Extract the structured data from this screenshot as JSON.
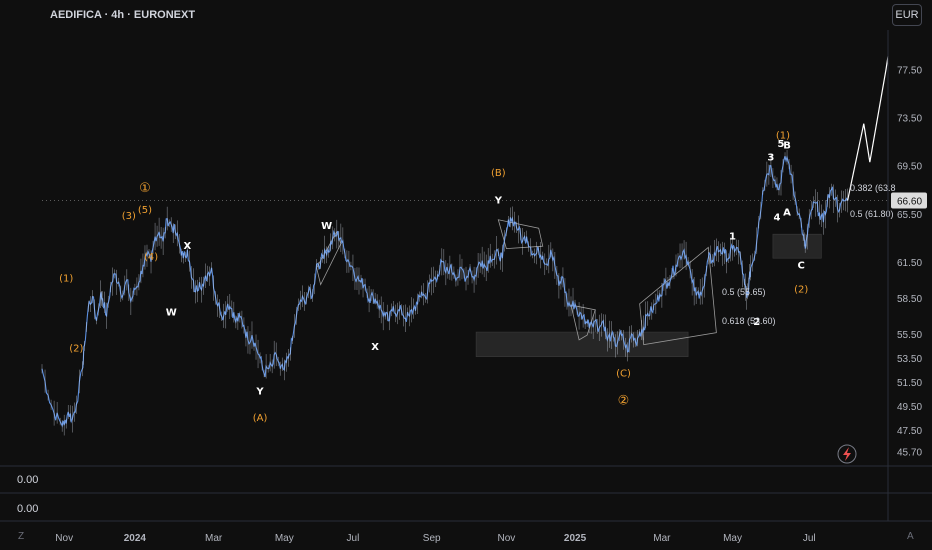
{
  "header": {
    "title": "AEDIFICA · 4h · EURONEXT",
    "currency": "EUR"
  },
  "indicators": {
    "pane1_value": "0.00",
    "pane2_value": "0.00"
  },
  "corners": {
    "left": "Z",
    "right": "A"
  },
  "colors": {
    "background": "#0f0f0f",
    "price_line": "#5b8fe0",
    "wave_orange": "#f0a030",
    "label_white": "#ffffff",
    "zone_fill": "#262626"
  },
  "chart_data": {
    "type": "line",
    "title": "AEDIFICA · 4h · EURONEXT",
    "xlabel": "",
    "ylabel": "",
    "ylim": [
      44.5,
      80.3
    ],
    "x_ticks": [
      "Nov",
      "2024",
      "Mar",
      "May",
      "Jul",
      "Sep",
      "Nov",
      "2025",
      "Mar",
      "May",
      "Jul"
    ],
    "x_tick_bold": [
      "2024",
      "2025"
    ],
    "y_ticks": [
      77.5,
      73.5,
      69.5,
      65.5,
      61.5,
      58.5,
      55.5,
      53.5,
      51.5,
      49.5,
      47.5,
      45.7
    ],
    "current_price": 66.6,
    "grid": false,
    "series": [
      {
        "values": [
          [
            0,
            52.6
          ],
          [
            3,
            50.4
          ],
          [
            6,
            48.9
          ],
          [
            9,
            48.2
          ],
          [
            11,
            47.9
          ],
          [
            13,
            49.0
          ],
          [
            15,
            48.4
          ],
          [
            17,
            49.6
          ],
          [
            20,
            52.6
          ],
          [
            21,
            54.5
          ],
          [
            23,
            57.8
          ],
          [
            25,
            58.6
          ],
          [
            27,
            56.6
          ],
          [
            29,
            58.8
          ],
          [
            30,
            58.4
          ],
          [
            32,
            57.0
          ],
          [
            34,
            59.4
          ],
          [
            36,
            60.5
          ],
          [
            38,
            59.8
          ],
          [
            40,
            58.7
          ],
          [
            42,
            60.0
          ],
          [
            44,
            58.2
          ],
          [
            46,
            59.2
          ],
          [
            48,
            59.8
          ],
          [
            50,
            61.2
          ],
          [
            52,
            62.0
          ],
          [
            54,
            61.5
          ],
          [
            56,
            63.6
          ],
          [
            58,
            64.0
          ],
          [
            60,
            63.2
          ],
          [
            62,
            65.1
          ],
          [
            64,
            64.6
          ],
          [
            66,
            64.0
          ],
          [
            68,
            63.0
          ],
          [
            70,
            61.8
          ],
          [
            72,
            62.5
          ],
          [
            74,
            60.2
          ],
          [
            76,
            59.0
          ],
          [
            78,
            59.8
          ],
          [
            80,
            59.5
          ],
          [
            82,
            60.5
          ],
          [
            84,
            61.0
          ],
          [
            86,
            58.5
          ],
          [
            88,
            57.6
          ],
          [
            90,
            57.0
          ],
          [
            92,
            58.0
          ],
          [
            94,
            57.6
          ],
          [
            96,
            56.5
          ],
          [
            98,
            56.9
          ],
          [
            100,
            56.2
          ],
          [
            102,
            55.0
          ],
          [
            104,
            55.4
          ],
          [
            106,
            54.4
          ],
          [
            108,
            53.5
          ],
          [
            110,
            52.2
          ],
          [
            112,
            52.6
          ],
          [
            114,
            52.8
          ],
          [
            116,
            53.8
          ],
          [
            118,
            52.6
          ],
          [
            120,
            52.5
          ],
          [
            122,
            53.5
          ],
          [
            124,
            55.0
          ],
          [
            126,
            57.0
          ],
          [
            128,
            58.3
          ],
          [
            130,
            58.2
          ],
          [
            132,
            59.0
          ],
          [
            134,
            58.7
          ],
          [
            136,
            61.3
          ],
          [
            138,
            61.4
          ],
          [
            140,
            62.5
          ],
          [
            142,
            62.3
          ],
          [
            144,
            63.5
          ],
          [
            146,
            63.8
          ],
          [
            148,
            63.5
          ],
          [
            150,
            62.2
          ],
          [
            152,
            61.5
          ],
          [
            154,
            61.0
          ],
          [
            156,
            60.1
          ],
          [
            158,
            59.8
          ],
          [
            160,
            59.6
          ],
          [
            162,
            58.4
          ],
          [
            164,
            58.6
          ],
          [
            166,
            58.2
          ],
          [
            168,
            57.5
          ],
          [
            170,
            57.0
          ],
          [
            172,
            56.6
          ],
          [
            174,
            57.8
          ],
          [
            176,
            57.2
          ],
          [
            178,
            57.5
          ],
          [
            180,
            56.8
          ],
          [
            182,
            57.0
          ],
          [
            184,
            57.6
          ],
          [
            186,
            58.0
          ],
          [
            188,
            59.0
          ],
          [
            190,
            58.5
          ],
          [
            192,
            59.7
          ],
          [
            194,
            60.0
          ],
          [
            196,
            60.4
          ],
          [
            198,
            61.5
          ],
          [
            200,
            60.6
          ],
          [
            202,
            61.0
          ],
          [
            204,
            60.6
          ],
          [
            206,
            60.2
          ],
          [
            208,
            60.9
          ],
          [
            210,
            60.1
          ],
          [
            212,
            61.0
          ],
          [
            214,
            60.0
          ],
          [
            216,
            61.2
          ],
          [
            218,
            61.6
          ],
          [
            220,
            61.0
          ],
          [
            222,
            62.0
          ],
          [
            224,
            61.7
          ],
          [
            226,
            62.3
          ],
          [
            228,
            61.8
          ],
          [
            230,
            64.0
          ],
          [
            232,
            65.2
          ],
          [
            234,
            64.8
          ],
          [
            236,
            64.2
          ],
          [
            238,
            63.2
          ],
          [
            240,
            63.6
          ],
          [
            242,
            62.7
          ],
          [
            244,
            62.0
          ],
          [
            246,
            62.4
          ],
          [
            248,
            62.0
          ],
          [
            250,
            61.3
          ],
          [
            252,
            62.5
          ],
          [
            254,
            61.2
          ],
          [
            256,
            59.5
          ],
          [
            258,
            60.2
          ],
          [
            260,
            58.2
          ],
          [
            262,
            57.8
          ],
          [
            264,
            58.0
          ],
          [
            266,
            57.0
          ],
          [
            268,
            57.0
          ],
          [
            270,
            56.4
          ],
          [
            272,
            56.5
          ],
          [
            274,
            56.6
          ],
          [
            276,
            56.0
          ],
          [
            278,
            56.6
          ],
          [
            280,
            55.0
          ],
          [
            282,
            55.4
          ],
          [
            284,
            54.5
          ],
          [
            286,
            55.4
          ],
          [
            288,
            55.0
          ],
          [
            290,
            54.0
          ],
          [
            292,
            55.5
          ],
          [
            294,
            54.8
          ],
          [
            296,
            55.6
          ],
          [
            298,
            56.0
          ],
          [
            300,
            57.2
          ],
          [
            302,
            57.4
          ],
          [
            304,
            58.0
          ],
          [
            306,
            58.8
          ],
          [
            308,
            59.6
          ],
          [
            310,
            59.8
          ],
          [
            312,
            60.5
          ],
          [
            314,
            61.2
          ],
          [
            316,
            62.0
          ],
          [
            318,
            62.5
          ],
          [
            320,
            61.5
          ],
          [
            322,
            59.8
          ],
          [
            324,
            58.7
          ],
          [
            326,
            59.0
          ],
          [
            328,
            59.5
          ],
          [
            330,
            61.8
          ],
          [
            332,
            61.6
          ],
          [
            334,
            62.5
          ],
          [
            336,
            62.5
          ],
          [
            338,
            62.2
          ],
          [
            340,
            61.8
          ],
          [
            342,
            62.6
          ],
          [
            344,
            62.7
          ],
          [
            346,
            61.8
          ],
          [
            348,
            59.6
          ],
          [
            349,
            58.5
          ],
          [
            350,
            59.4
          ],
          [
            351,
            61.0
          ],
          [
            353,
            62.0
          ],
          [
            355,
            64.8
          ],
          [
            357,
            67.4
          ],
          [
            359,
            68.8
          ],
          [
            361,
            69.5
          ],
          [
            363,
            68.3
          ],
          [
            365,
            67.5
          ],
          [
            367,
            69.5
          ],
          [
            369,
            70.2
          ],
          [
            371,
            68.8
          ],
          [
            373,
            66.8
          ],
          [
            375,
            65.5
          ],
          [
            377,
            63.7
          ],
          [
            378,
            62.6
          ],
          [
            379,
            63.6
          ],
          [
            381,
            65.8
          ],
          [
            383,
            66.4
          ],
          [
            385,
            65.6
          ],
          [
            387,
            64.8
          ],
          [
            389,
            66.6
          ],
          [
            391,
            67.5
          ],
          [
            393,
            66.8
          ],
          [
            395,
            65.8
          ],
          [
            397,
            66.6
          ],
          [
            399,
            66.6
          ]
        ]
      },
      {
        "name": "projection",
        "values": [
          [
            399,
            66.6
          ],
          [
            407,
            73.0
          ],
          [
            410,
            69.8
          ],
          [
            418,
            77.5
          ],
          [
            419,
            78.6
          ]
        ]
      }
    ],
    "x_tick_positions": [
      11,
      46,
      85,
      120,
      154,
      193,
      230,
      264,
      307,
      342,
      380
    ],
    "fib_levels": [
      {
        "label": "0.5 (55.65)",
        "value": 55.65
      },
      {
        "label": "0.618 (53.60)",
        "value": 53.6
      },
      {
        "label": "0.382 (63.8",
        "value": 63.8
      },
      {
        "label": "0.5 (61.80)",
        "value": 61.8
      }
    ],
    "zones": [
      {
        "x": [
          215,
          320
        ],
        "y": [
          53.6,
          55.65
        ]
      },
      {
        "x": [
          362,
          386
        ],
        "y": [
          61.8,
          63.8
        ]
      }
    ],
    "reference_line": 66.6,
    "wave_labels": [
      {
        "text": "(1)",
        "x": 12,
        "y": 60.1,
        "color": "orange"
      },
      {
        "text": "(2)",
        "x": 17,
        "y": 54.3,
        "color": "orange"
      },
      {
        "text": "(3)",
        "x": 43,
        "y": 65.3,
        "color": "orange"
      },
      {
        "text": "(5)",
        "x": 51,
        "y": 65.8,
        "color": "orange"
      },
      {
        "text": "①",
        "x": 51,
        "y": 67.6,
        "color": "orange"
      },
      {
        "text": "(4)",
        "x": 54,
        "y": 61.9,
        "color": "orange"
      },
      {
        "text": "X",
        "x": 72,
        "y": 62.8,
        "color": "white"
      },
      {
        "text": "W",
        "x": 64,
        "y": 57.3,
        "color": "white"
      },
      {
        "text": "Y",
        "x": 108,
        "y": 50.7,
        "color": "white"
      },
      {
        "text": "(A)",
        "x": 108,
        "y": 48.5,
        "color": "orange"
      },
      {
        "text": "W",
        "x": 141,
        "y": 64.5,
        "color": "white"
      },
      {
        "text": "X",
        "x": 165,
        "y": 54.4,
        "color": "white"
      },
      {
        "text": "(B)",
        "x": 226,
        "y": 68.9,
        "color": "orange"
      },
      {
        "text": "Y",
        "x": 226,
        "y": 66.6,
        "color": "white"
      },
      {
        "text": "(C)",
        "x": 288,
        "y": 52.2,
        "color": "orange"
      },
      {
        "text": "②",
        "x": 288,
        "y": 49.9,
        "color": "orange"
      },
      {
        "text": "1",
        "x": 342,
        "y": 63.6,
        "color": "white"
      },
      {
        "text": "2",
        "x": 354,
        "y": 56.5,
        "color": "white"
      },
      {
        "text": "(1)",
        "x": 367,
        "y": 72.0,
        "color": "orange"
      },
      {
        "text": "3",
        "x": 361,
        "y": 70.2,
        "color": "white"
      },
      {
        "text": "5",
        "x": 366,
        "y": 71.3,
        "color": "white"
      },
      {
        "text": "B",
        "x": 369,
        "y": 71.2,
        "color": "white"
      },
      {
        "text": "4",
        "x": 364,
        "y": 65.2,
        "color": "white"
      },
      {
        "text": "A",
        "x": 369,
        "y": 65.6,
        "color": "white"
      },
      {
        "text": "C",
        "x": 376,
        "y": 61.2,
        "color": "white"
      },
      {
        "text": "(2)",
        "x": 376,
        "y": 59.2,
        "color": "orange"
      }
    ],
    "triangles": [
      [
        [
          136,
          61.0
        ],
        [
          146,
          64.0
        ],
        [
          148,
          63.0
        ],
        [
          138,
          59.6
        ]
      ],
      [
        [
          226,
          65.0
        ],
        [
          246,
          64.3
        ],
        [
          248,
          62.8
        ],
        [
          230,
          62.6
        ]
      ],
      [
        [
          262,
          57.9
        ],
        [
          274,
          57.5
        ],
        [
          270,
          55.4
        ],
        [
          266,
          55.0
        ]
      ],
      [
        [
          296,
          58.0
        ],
        [
          330,
          62.7
        ],
        [
          334,
          55.6
        ],
        [
          298,
          54.6
        ]
      ]
    ]
  }
}
